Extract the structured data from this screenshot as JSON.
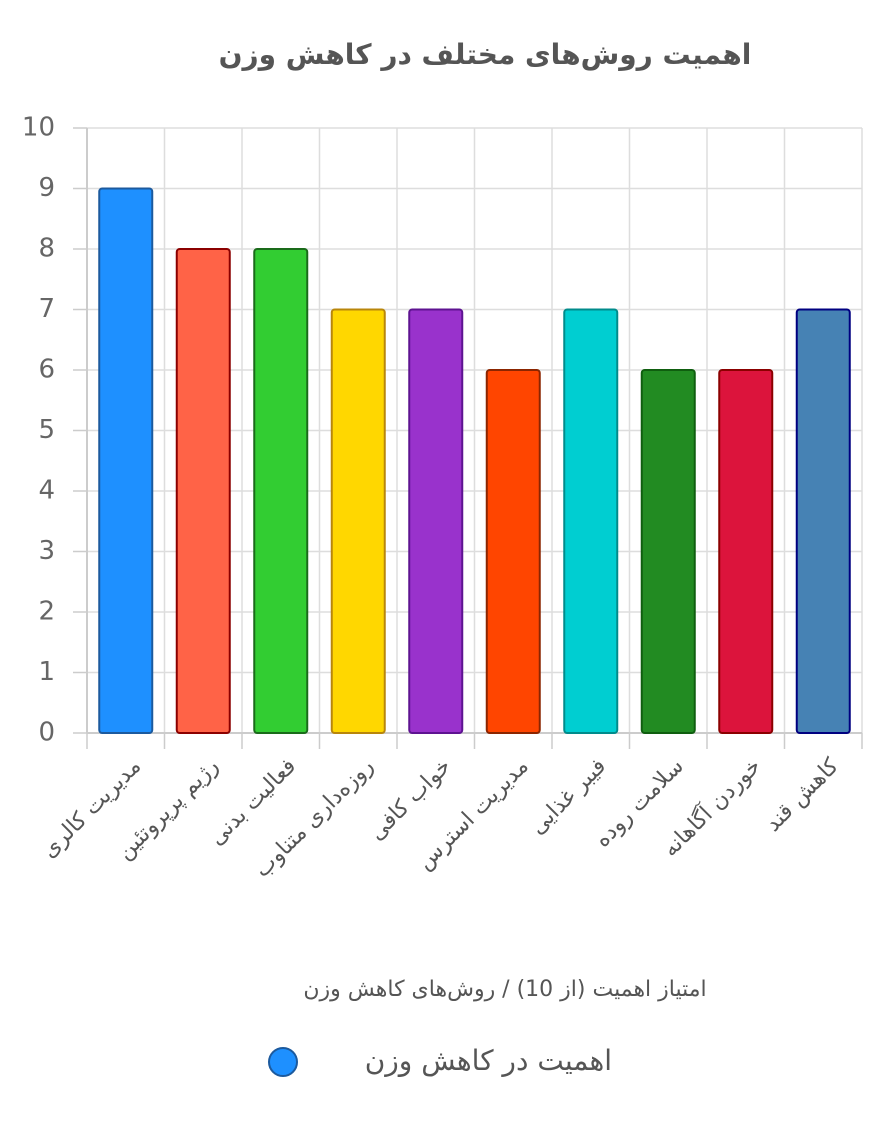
{
  "chart_data": {
    "type": "bar",
    "title": "اهمیت روش‌های مختلف در کاهش وزن",
    "x_label": "امتیاز اهمیت (از 10) / روش‌های کاهش وزن",
    "categories": [
      "مدیریت کالری",
      "رژیم پرپروتئین",
      "فعالیت بدنی",
      "روزه‌داری متناوب",
      "خواب کافی",
      "مدیریت استرس",
      "فیبر غذایی",
      "سلامت روده",
      "خوردن آگاهانه",
      "کاهش قند"
    ],
    "series": [
      {
        "name": "اهمیت در کاهش وزن",
        "color": "#1e90ff",
        "values": [
          9,
          8,
          8,
          7,
          7,
          6,
          7,
          6,
          6,
          7
        ],
        "bar_colors": [
          "#1e90ff",
          "#ff6347",
          "#32cd32",
          "#ffd700",
          "#9932cc",
          "#ff4500",
          "#00ced1",
          "#228b22",
          "#dc143c",
          "#4682b4"
        ],
        "border_colors": [
          "#1c5a9e",
          "#8b0000",
          "#1a6b1a",
          "#b8860b",
          "#5e1391",
          "#8b2500",
          "#008b8b",
          "#0f5e0f",
          "#8b0000",
          "#000080"
        ]
      }
    ],
    "ylim": [
      0,
      10
    ],
    "yticks": [
      0,
      1,
      2,
      3,
      4,
      5,
      6,
      7,
      8,
      9,
      10
    ],
    "grid": true,
    "legend_position": "bottom"
  }
}
